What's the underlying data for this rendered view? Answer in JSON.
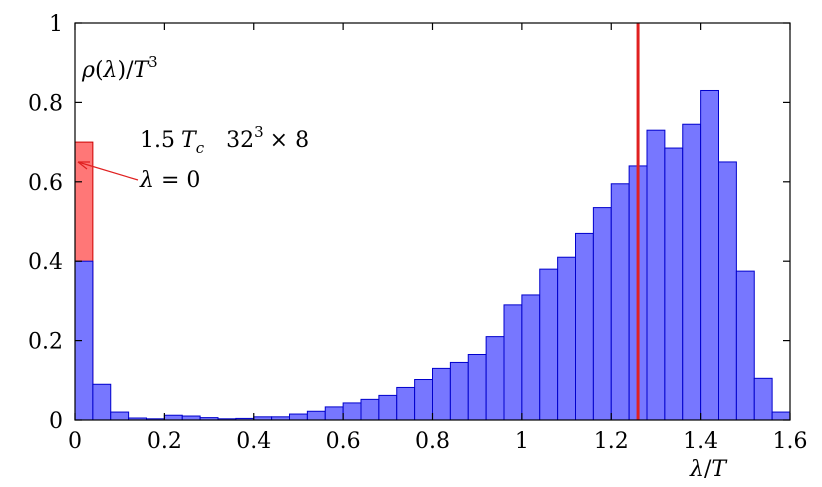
{
  "chart_data": {
    "type": "bar",
    "bin_width": 0.04,
    "x_start": 0,
    "values": [
      0.4,
      0.09,
      0.02,
      0.005,
      0.003,
      0.012,
      0.01,
      0.006,
      0.003,
      0.004,
      0.008,
      0.008,
      0.015,
      0.022,
      0.033,
      0.043,
      0.052,
      0.062,
      0.082,
      0.102,
      0.13,
      0.145,
      0.165,
      0.21,
      0.29,
      0.315,
      0.38,
      0.41,
      0.47,
      0.535,
      0.595,
      0.64,
      0.73,
      0.685,
      0.745,
      0.83,
      0.65,
      0.375,
      0.105,
      0.02
    ],
    "zero_mode": {
      "x": 0,
      "width": 0.04,
      "value": 0.7,
      "label": "λ = 0",
      "color": "#ff7777"
    },
    "marker_line": {
      "x": 1.26,
      "color": "#e02020"
    },
    "bar_color": "#7777ff",
    "bar_edge_color": "#0000cc",
    "xlim": [
      0,
      1.6
    ],
    "ylim": [
      0,
      1
    ],
    "x_ticks": [
      "0",
      "0.2",
      "0.4",
      "0.6",
      "0.8",
      "1",
      "1.2",
      "1.4",
      "1.6"
    ],
    "y_ticks": [
      "0",
      "0.2",
      "0.4",
      "0.6",
      "0.8",
      "1"
    ],
    "ylabel": "ρ(λ)/T³",
    "xlabel": "λ/T",
    "annotation": "1.5 T_c  32³ × 8",
    "grid": false
  }
}
